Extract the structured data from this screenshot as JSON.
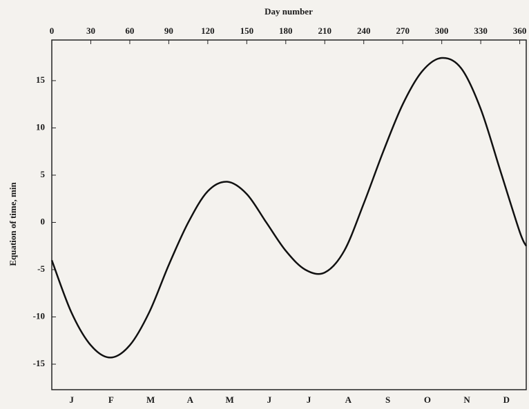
{
  "chart_data": {
    "type": "line",
    "x_label": "Day number",
    "y_label": "Equation of time, min",
    "x": [
      0,
      15,
      30,
      45,
      60,
      75,
      90,
      105,
      120,
      135,
      150,
      165,
      180,
      195,
      210,
      225,
      240,
      255,
      270,
      285,
      300,
      315,
      330,
      345,
      360,
      365
    ],
    "series": [
      {
        "name": "Equation of time",
        "color": "#111111",
        "values": [
          -4,
          -9.5,
          -13,
          -14.3,
          -13,
          -9.5,
          -4.5,
          0,
          3.3,
          4.3,
          3,
          0,
          -3,
          -5,
          -5.3,
          -3,
          2,
          7.5,
          12.5,
          16,
          17.4,
          16.3,
          12,
          5.5,
          -1,
          -2.5
        ]
      }
    ],
    "months": [
      "J",
      "F",
      "M",
      "A",
      "M",
      "J",
      "J",
      "A",
      "S",
      "O",
      "N",
      "D"
    ],
    "xlim": [
      0,
      365
    ],
    "xticks": [
      0,
      30,
      60,
      90,
      120,
      150,
      180,
      210,
      240,
      270,
      300,
      330,
      360
    ],
    "ylim": [
      -17.7,
      19.3
    ],
    "yticks": [
      -15,
      -10,
      -5,
      0,
      5,
      10,
      15
    ],
    "grid": false
  }
}
